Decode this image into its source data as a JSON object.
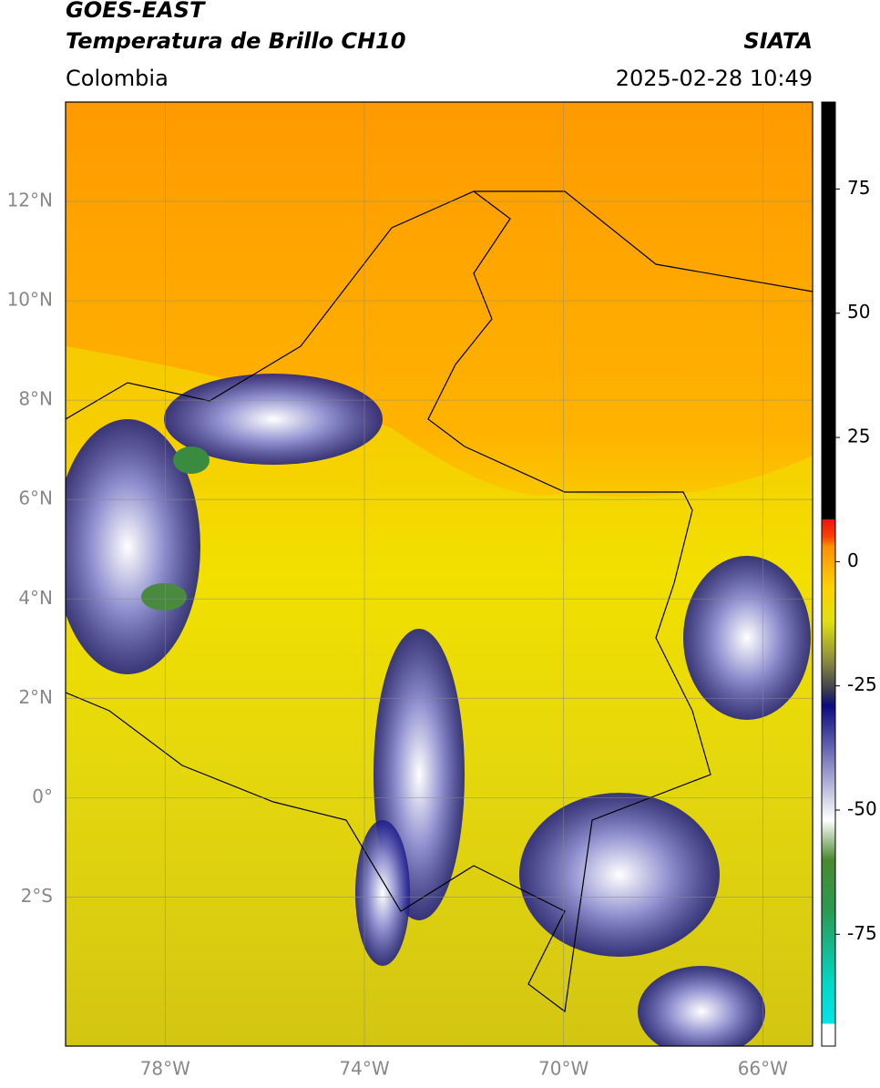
{
  "header": {
    "title_line1": "GOES-EAST",
    "title_line2": "Temperatura de Brillo CH10",
    "source": "SIATA",
    "region": "Colombia",
    "datetime": "2025-02-28 10:49"
  },
  "map": {
    "lonlim": [
      -80,
      -65
    ],
    "latlim": [
      -5,
      14
    ],
    "lon_ticks": [
      {
        "value": -78,
        "label": "78°W"
      },
      {
        "value": -74,
        "label": "74°W"
      },
      {
        "value": -70,
        "label": "70°W"
      },
      {
        "value": -66,
        "label": "66°W"
      }
    ],
    "lat_ticks": [
      {
        "value": 12,
        "label": "12°N"
      },
      {
        "value": 10,
        "label": "10°N"
      },
      {
        "value": 8,
        "label": "8°N"
      },
      {
        "value": 6,
        "label": "6°N"
      },
      {
        "value": 4,
        "label": "4°N"
      },
      {
        "value": 2,
        "label": "2°N"
      },
      {
        "value": 0,
        "label": "0°"
      },
      {
        "value": -2,
        "label": "2°S"
      }
    ],
    "grid": true
  },
  "colorbar": {
    "lim": [
      -97.5,
      92.5
    ],
    "ticks": [
      75,
      50,
      25,
      0,
      -25,
      -50,
      -75
    ],
    "colormap": [
      {
        "value": -97.5,
        "color": "#ffffff"
      },
      {
        "value": -93,
        "color": "#ffffff"
      },
      {
        "value": -93,
        "color": "#00e5e5"
      },
      {
        "value": -85,
        "color": "#00d8c8"
      },
      {
        "value": -70,
        "color": "#2a9a50"
      },
      {
        "value": -60,
        "color": "#4a8a30"
      },
      {
        "value": -52,
        "color": "#ffffff"
      },
      {
        "value": -40,
        "color": "#8080c0"
      },
      {
        "value": -29,
        "color": "#0a0a80"
      },
      {
        "value": -26,
        "color": "#3a3a50"
      },
      {
        "value": -20,
        "color": "#8a8a40"
      },
      {
        "value": -12,
        "color": "#e0e010"
      },
      {
        "value": -5,
        "color": "#ffd000"
      },
      {
        "value": 3,
        "color": "#ff9000"
      },
      {
        "value": 5,
        "color": "#ff4000"
      },
      {
        "value": 8.5,
        "color": "#ee1010"
      },
      {
        "value": 8.5,
        "color": "#000000"
      },
      {
        "value": 92.5,
        "color": "#000000"
      }
    ]
  }
}
